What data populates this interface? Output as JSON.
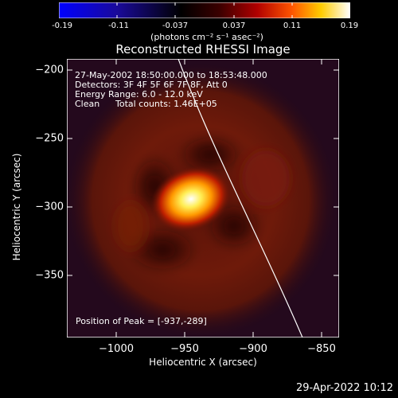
{
  "colorbar": {
    "ticks": [
      "-0.19",
      "-0.11",
      "-0.037",
      "0.037",
      "0.11",
      "0.19"
    ],
    "units": "(photons cm⁻² s⁻¹ asec⁻²)"
  },
  "title": "Reconstructed RHESSI Image",
  "info": {
    "time": "27-May-2002 18:50:00.000 to 18:53:48.000",
    "detectors": "Detectors: 3F 4F 5F 6F 7F 8F, Att 0",
    "energy": "Energy Range: 6.0 - 12.0 keV",
    "method": "Clean",
    "counts": "Total counts: 1.46E+05"
  },
  "peak": "Position of Peak = [-937,-289]",
  "axes": {
    "xlabel": "Heliocentric X (arcsec)",
    "ylabel": "Heliocentric Y (arcsec)",
    "xticks": [
      "−1000",
      "−950",
      "−900",
      "−850"
    ],
    "yticks": [
      "−200",
      "−250",
      "−300",
      "−350"
    ]
  },
  "timestamp": "29-Apr-2022 10:12"
}
